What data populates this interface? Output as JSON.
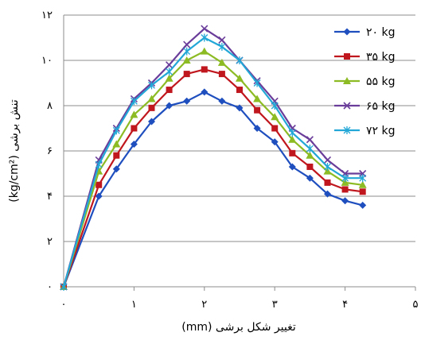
{
  "chart_data": {
    "type": "line",
    "xlabel": "تغییر شکل برشی (mm)",
    "ylabel": "تنش برشی (kg/cm²)",
    "xlim": [
      0,
      5
    ],
    "ylim": [
      0,
      12
    ],
    "x_ticks": [
      {
        "value": 0,
        "label": "۰"
      },
      {
        "value": 1,
        "label": "۱"
      },
      {
        "value": 2,
        "label": "۲"
      },
      {
        "value": 3,
        "label": "۳"
      },
      {
        "value": 4,
        "label": "۴"
      },
      {
        "value": 5,
        "label": "۵"
      }
    ],
    "y_ticks": [
      {
        "value": 0,
        "label": "۰"
      },
      {
        "value": 2,
        "label": "۲"
      },
      {
        "value": 4,
        "label": "۴"
      },
      {
        "value": 6,
        "label": "۶"
      },
      {
        "value": 8,
        "label": "۸"
      },
      {
        "value": 10,
        "label": "۱۰"
      },
      {
        "value": 12,
        "label": "۱۲"
      }
    ],
    "grid": "horizontal",
    "legend_position": "right",
    "x": [
      0,
      0.5,
      0.75,
      1.0,
      1.25,
      1.5,
      1.75,
      2.0,
      2.25,
      2.5,
      2.75,
      3.0,
      3.25,
      3.5,
      3.75,
      4.0,
      4.25
    ],
    "series": [
      {
        "name": "۲۰ kg",
        "color": "#1f4fbf",
        "marker": "diamond",
        "values": [
          0,
          4.0,
          5.2,
          6.3,
          7.3,
          8.0,
          8.2,
          8.6,
          8.2,
          7.9,
          7.0,
          6.4,
          5.3,
          4.8,
          4.1,
          3.8,
          3.6
        ]
      },
      {
        "name": "۳۵ kg",
        "color": "#c0161d",
        "marker": "square",
        "values": [
          0,
          4.5,
          5.8,
          7.0,
          7.9,
          8.7,
          9.4,
          9.6,
          9.4,
          8.7,
          7.8,
          7.0,
          5.9,
          5.3,
          4.6,
          4.3,
          4.2
        ]
      },
      {
        "name": "۵۵ kg",
        "color": "#8cbb24",
        "marker": "triangle",
        "values": [
          0,
          5.1,
          6.3,
          7.6,
          8.3,
          9.2,
          10.0,
          10.4,
          9.9,
          9.2,
          8.3,
          7.5,
          6.5,
          5.8,
          5.1,
          4.6,
          4.5
        ]
      },
      {
        "name": "۶۵ kg",
        "color": "#6a3d9a",
        "marker": "x",
        "values": [
          0,
          5.6,
          7.0,
          8.3,
          9.0,
          9.8,
          10.7,
          11.4,
          10.9,
          10.0,
          9.1,
          8.2,
          7.0,
          6.5,
          5.6,
          5.0,
          5.0
        ]
      },
      {
        "name": "۷۲ kg",
        "color": "#22a7d6",
        "marker": "asterisk",
        "values": [
          0,
          5.4,
          6.9,
          8.2,
          8.9,
          9.5,
          10.4,
          11.0,
          10.6,
          10.0,
          9.0,
          8.0,
          6.8,
          6.1,
          5.3,
          4.8,
          4.8
        ]
      }
    ]
  }
}
